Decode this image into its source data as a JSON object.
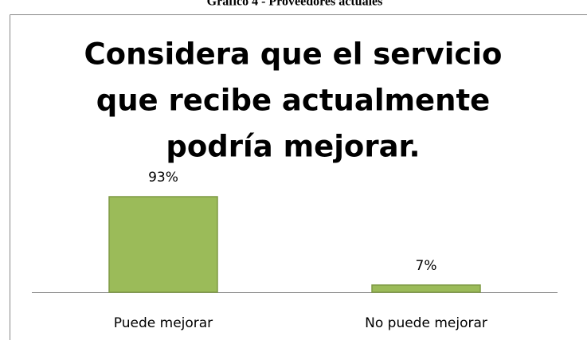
{
  "caption": "Gráfico 4 - Proveedores actuales",
  "chart_data": {
    "type": "bar",
    "title": [
      "Considera que el servicio",
      "que recibe actualmente",
      "podría mejorar."
    ],
    "categories": [
      "Puede mejorar",
      "No puede mejorar"
    ],
    "values": [
      93,
      7
    ],
    "value_labels": [
      "93%",
      "7%"
    ],
    "color": "#9bbb59"
  }
}
